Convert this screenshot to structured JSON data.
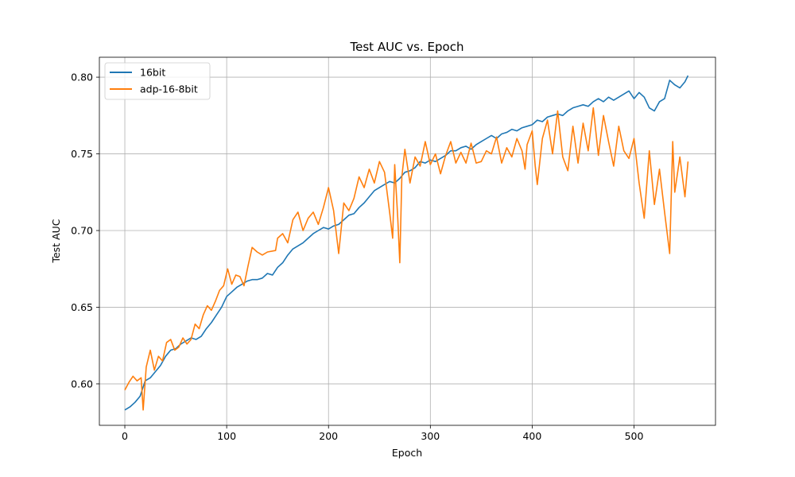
{
  "chart_data": {
    "type": "line",
    "title": "Test AUC vs. Epoch",
    "xlabel": "Epoch",
    "ylabel": "Test AUC",
    "xlim": [
      -25,
      580
    ],
    "ylim": [
      0.573,
      0.813
    ],
    "xticks": [
      0,
      100,
      200,
      300,
      400,
      500
    ],
    "yticks": [
      0.6,
      0.65,
      0.7,
      0.75,
      0.8
    ],
    "ytick_labels": [
      "0.60",
      "0.65",
      "0.70",
      "0.75",
      "0.80"
    ],
    "xtick_labels": [
      "0",
      "100",
      "200",
      "300",
      "400",
      "500"
    ],
    "grid": true,
    "legend_position": "upper-left",
    "series": [
      {
        "name": "16bit",
        "color": "#1f77b4",
        "x": [
          0,
          5,
          10,
          15,
          20,
          25,
          30,
          35,
          40,
          45,
          50,
          55,
          60,
          65,
          70,
          75,
          80,
          85,
          90,
          95,
          100,
          105,
          110,
          115,
          120,
          125,
          130,
          135,
          140,
          145,
          150,
          155,
          160,
          165,
          170,
          175,
          180,
          185,
          190,
          195,
          200,
          205,
          210,
          215,
          220,
          225,
          230,
          235,
          240,
          245,
          250,
          255,
          260,
          265,
          270,
          275,
          280,
          285,
          290,
          295,
          300,
          305,
          310,
          315,
          320,
          325,
          330,
          335,
          340,
          345,
          350,
          355,
          360,
          365,
          370,
          375,
          380,
          385,
          390,
          395,
          400,
          405,
          410,
          415,
          420,
          425,
          430,
          435,
          440,
          445,
          450,
          455,
          460,
          465,
          470,
          475,
          480,
          485,
          490,
          495,
          500,
          505,
          510,
          515,
          520,
          525,
          530,
          535,
          540,
          545,
          550,
          553
        ],
        "values": [
          0.583,
          0.585,
          0.588,
          0.592,
          0.602,
          0.604,
          0.608,
          0.612,
          0.618,
          0.622,
          0.623,
          0.626,
          0.628,
          0.63,
          0.629,
          0.631,
          0.636,
          0.64,
          0.645,
          0.65,
          0.657,
          0.66,
          0.663,
          0.665,
          0.667,
          0.668,
          0.668,
          0.669,
          0.672,
          0.671,
          0.676,
          0.679,
          0.684,
          0.688,
          0.69,
          0.692,
          0.695,
          0.698,
          0.7,
          0.702,
          0.701,
          0.703,
          0.704,
          0.707,
          0.71,
          0.711,
          0.715,
          0.718,
          0.722,
          0.726,
          0.728,
          0.73,
          0.732,
          0.731,
          0.734,
          0.738,
          0.739,
          0.741,
          0.745,
          0.744,
          0.746,
          0.745,
          0.747,
          0.749,
          0.752,
          0.752,
          0.754,
          0.755,
          0.753,
          0.756,
          0.758,
          0.76,
          0.762,
          0.76,
          0.763,
          0.764,
          0.766,
          0.765,
          0.767,
          0.768,
          0.769,
          0.772,
          0.771,
          0.774,
          0.775,
          0.776,
          0.775,
          0.778,
          0.78,
          0.781,
          0.782,
          0.781,
          0.784,
          0.786,
          0.784,
          0.787,
          0.785,
          0.787,
          0.789,
          0.791,
          0.786,
          0.79,
          0.787,
          0.78,
          0.778,
          0.784,
          0.786,
          0.798,
          0.795,
          0.793,
          0.797,
          0.801
        ]
      },
      {
        "name": "adp-16-8bit",
        "color": "#ff7f0e",
        "x": [
          0,
          4,
          8,
          12,
          16,
          18,
          21,
          25,
          29,
          33,
          37,
          41,
          45,
          49,
          53,
          57,
          61,
          65,
          69,
          73,
          77,
          81,
          85,
          89,
          93,
          97,
          101,
          105,
          109,
          113,
          117,
          121,
          125,
          130,
          135,
          140,
          148,
          150,
          155,
          160,
          165,
          170,
          175,
          180,
          185,
          190,
          195,
          200,
          205,
          210,
          215,
          220,
          225,
          230,
          235,
          240,
          245,
          250,
          255,
          260,
          263,
          265,
          268,
          270,
          272,
          275,
          280,
          285,
          290,
          295,
          300,
          305,
          310,
          315,
          320,
          325,
          330,
          335,
          340,
          345,
          350,
          355,
          360,
          365,
          370,
          375,
          380,
          385,
          390,
          393,
          395,
          400,
          403,
          405,
          410,
          415,
          420,
          425,
          430,
          435,
          440,
          445,
          450,
          455,
          460,
          465,
          470,
          475,
          480,
          485,
          490,
          495,
          500,
          505,
          510,
          515,
          520,
          525,
          530,
          535,
          538,
          540,
          545,
          550,
          553
        ],
        "values": [
          0.596,
          0.601,
          0.605,
          0.602,
          0.604,
          0.583,
          0.611,
          0.622,
          0.609,
          0.618,
          0.615,
          0.627,
          0.629,
          0.622,
          0.624,
          0.63,
          0.626,
          0.629,
          0.639,
          0.636,
          0.645,
          0.651,
          0.648,
          0.654,
          0.661,
          0.664,
          0.675,
          0.665,
          0.671,
          0.67,
          0.664,
          0.677,
          0.689,
          0.686,
          0.684,
          0.686,
          0.687,
          0.695,
          0.698,
          0.692,
          0.707,
          0.712,
          0.7,
          0.708,
          0.712,
          0.704,
          0.715,
          0.728,
          0.713,
          0.685,
          0.718,
          0.713,
          0.721,
          0.735,
          0.728,
          0.74,
          0.731,
          0.745,
          0.738,
          0.712,
          0.695,
          0.743,
          0.708,
          0.679,
          0.735,
          0.753,
          0.731,
          0.748,
          0.742,
          0.758,
          0.743,
          0.75,
          0.737,
          0.749,
          0.758,
          0.744,
          0.751,
          0.744,
          0.757,
          0.744,
          0.745,
          0.752,
          0.75,
          0.761,
          0.744,
          0.754,
          0.748,
          0.76,
          0.752,
          0.74,
          0.756,
          0.765,
          0.742,
          0.73,
          0.76,
          0.772,
          0.75,
          0.778,
          0.748,
          0.739,
          0.768,
          0.744,
          0.77,
          0.752,
          0.78,
          0.749,
          0.775,
          0.758,
          0.742,
          0.768,
          0.752,
          0.747,
          0.76,
          0.731,
          0.708,
          0.752,
          0.717,
          0.74,
          0.712,
          0.685,
          0.758,
          0.725,
          0.748,
          0.722,
          0.745
        ]
      }
    ]
  }
}
